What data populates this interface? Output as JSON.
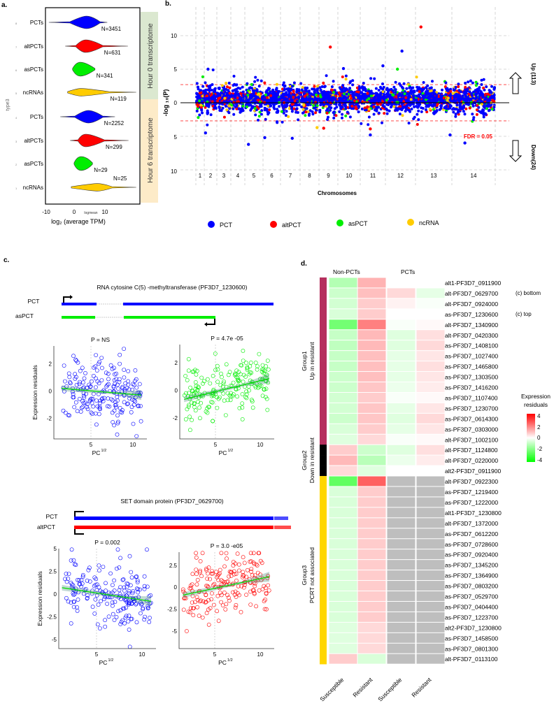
{
  "panel_labels": {
    "a": "a.",
    "b": "b.",
    "c": "c.",
    "d": "d."
  },
  "colors": {
    "PCT": "#0000ff",
    "altPCT": "#ff0000",
    "asPCT": "#00ee00",
    "ncRNA": "#ffcc00",
    "hour0_strip": "#dbe8d0",
    "hour6_strip": "#fdebc8",
    "group1": "#b5305e",
    "group2": "#000000",
    "group3": "#ffd600",
    "na": "#bebebe"
  },
  "panel_a": {
    "ylabel": "type3",
    "xlabel": "log₂ (average TPM)",
    "x_axis_name": "logmean",
    "x_ticks": [
      "-10",
      "0",
      "10"
    ],
    "strip_hour0": "Hour 0  transcriptome",
    "strip_hour6": "Hour 6  transcriptome",
    "chart_data": {
      "type": "violin",
      "xlim": [
        -12,
        22
      ],
      "groups": [
        {
          "label": "PCTs",
          "prefix": "8",
          "type": "PCT",
          "n_label": "N=3451",
          "min": -10.5,
          "q1": -3.6,
          "mode": 1.7,
          "q3": 6.1,
          "max": 8.5,
          "width": 1.0
        },
        {
          "label": "altPCTs",
          "prefix": "7",
          "type": "altPCT",
          "n_label": "N=631",
          "min": -5.2,
          "q1": -1.7,
          "mode": 1.5,
          "q3": 7.0,
          "max": 15.2,
          "width": 1.0
        },
        {
          "label": "asPCTs",
          "prefix": "6",
          "type": "asPCT",
          "n_label": "N=341",
          "min": -2.8,
          "q1": -2.8,
          "mode": -0.3,
          "q3": 4.5,
          "max": 4.5,
          "width": 1.1
        },
        {
          "label": "ncRNAs",
          "prefix": "5",
          "type": "ncRNA",
          "n_label": "N=119",
          "min": -4.4,
          "q1": -4.4,
          "mode": 0.0,
          "q3": 9.0,
          "max": 17.9,
          "width": 0.6
        },
        {
          "label": "PCTs",
          "prefix": "4",
          "type": "PCT",
          "n_label": "N=2252",
          "min": -6.8,
          "q1": -2.0,
          "mode": 2.3,
          "q3": 7.0,
          "max": 11.0,
          "width": 1.0
        },
        {
          "label": "altPCTs",
          "prefix": "3",
          "type": "altPCT",
          "n_label": "N=299",
          "min": -3.6,
          "q1": -1.0,
          "mode": 1.5,
          "q3": 7.5,
          "max": 15.4,
          "width": 1.0
        },
        {
          "label": "asPCTs",
          "prefix": "2",
          "type": "asPCT",
          "n_label": "N=29",
          "min": -2.3,
          "q1": -2.3,
          "mode": 0.0,
          "q3": 3.7,
          "max": 3.7,
          "width": 1.1
        },
        {
          "label": "ncRNAs",
          "prefix": "1",
          "type": "ncRNA",
          "n_label": "N=25",
          "min": -3.2,
          "q1": -3.2,
          "mode": 5.2,
          "q3": 10.0,
          "max": 17.9,
          "width": 0.6
        }
      ]
    }
  },
  "panel_b": {
    "ylabel": "-log ₁₀(P)",
    "xlabel": "Chromosomes",
    "y_ticks": [
      "10",
      "5",
      "0",
      "5",
      "10"
    ],
    "fdr_label": "FDR = 0.05",
    "up_label": "Up (113)",
    "down_label": "Down(24)",
    "legend": [
      "PCT",
      "altPCT",
      "asPCT",
      "ncRNA"
    ],
    "chart_data": {
      "type": "scatter",
      "subtype": "mirrored manhattan",
      "chromosomes": [
        "1",
        "2",
        "3",
        "4",
        "5",
        "6",
        "7",
        "8",
        "9",
        "10",
        "11",
        "12",
        "13",
        "14"
      ],
      "ylim": [
        -10,
        12
      ],
      "fdr_threshold_log10p": 2.7,
      "up_count": 113,
      "down_count": 24,
      "notable_points": [
        {
          "chr": 13,
          "pos": 0.15,
          "value": 11.3,
          "type": "altPCT"
        },
        {
          "chr": 9,
          "pos": 0.6,
          "value": 8.3,
          "type": "altPCT"
        },
        {
          "chr": 12,
          "pos": 0.55,
          "value": 7.7,
          "type": "PCT"
        },
        {
          "chr": 10,
          "pos": 0.25,
          "value": 5.1,
          "type": "PCT"
        },
        {
          "chr": 11,
          "pos": 0.9,
          "value": 5.5,
          "type": "PCT"
        },
        {
          "chr": 12,
          "pos": 0.4,
          "value": 5.0,
          "type": "asPCT"
        },
        {
          "chr": 2,
          "pos": 0.3,
          "value": 5.0,
          "type": "PCT"
        },
        {
          "chr": 5,
          "pos": 0.2,
          "value": -6.2,
          "type": "PCT"
        },
        {
          "chr": 14,
          "pos": 0.3,
          "value": -6.0,
          "type": "PCT"
        },
        {
          "chr": 7,
          "pos": 0.6,
          "value": -5.3,
          "type": "PCT"
        },
        {
          "chr": 6,
          "pos": 0.1,
          "value": -5.2,
          "type": "PCT"
        },
        {
          "chr": 11,
          "pos": 0.4,
          "value": -4.8,
          "type": "PCT"
        },
        {
          "chr": 13,
          "pos": 0.95,
          "value": -4.8,
          "type": "PCT"
        },
        {
          "chr": 2,
          "pos": 0.1,
          "value": -4.5,
          "type": "PCT"
        },
        {
          "chr": 11,
          "pos": 0.4,
          "value": -3.9,
          "type": "altPCT"
        },
        {
          "chr": 9,
          "pos": 0.25,
          "value": -3.8,
          "type": "altPCT"
        },
        {
          "chr": 8,
          "pos": 0.9,
          "value": -3.7,
          "type": "ncRNA"
        }
      ]
    }
  },
  "panel_c": {
    "top": {
      "gene_title": "RNA cytosine C(5) -methyltransferase (PF3D7_1230600)",
      "track1": "PCT",
      "track2": "asPCT",
      "left": {
        "p_label": "P = NS",
        "type": "PCT",
        "ylim": [
          -3.5,
          3.3
        ],
        "y_ticks": [
          "2",
          "0",
          "-2"
        ],
        "y_tick_values": [
          2,
          0,
          -2
        ],
        "trend": [
          [
            1.5,
            0.2
          ],
          [
            11,
            -0.3
          ]
        ]
      },
      "right": {
        "p_label": "P = 4.7e -05",
        "type": "asPCT",
        "ylim": [
          -3.5,
          3.3
        ],
        "y_ticks": [
          "2",
          "0",
          "-2"
        ],
        "y_tick_values": [
          2,
          0,
          -2
        ],
        "trend": [
          [
            1.5,
            -0.65
          ],
          [
            11,
            0.85
          ]
        ]
      }
    },
    "bottom": {
      "gene_title": "SET domain protein (PF3D7_0629700)",
      "track1": "PCT",
      "track2": "altPCT",
      "left": {
        "p_label": "P = 0.002",
        "type": "PCT",
        "ylim": [
          -6,
          5
        ],
        "y_ticks": [
          "5",
          "2.5",
          "0",
          "-2.5",
          "-5"
        ],
        "y_tick_values": [
          5,
          2.5,
          0,
          -2.5,
          -5
        ],
        "trend": [
          [
            1.2,
            0.7
          ],
          [
            11,
            -0.8
          ]
        ]
      },
      "right": {
        "p_label": "P = 3.0 -e05",
        "type": "altPCT",
        "ylim": [
          -7,
          4
        ],
        "y_ticks": [
          "2.5",
          "0",
          "-2.5",
          "-5"
        ],
        "y_tick_values": [
          2.5,
          0,
          -2.5,
          -5
        ],
        "trend": [
          [
            1.5,
            -0.9
          ],
          [
            11,
            1.2
          ]
        ]
      }
    },
    "ylabel": "Expression residuals",
    "xlabel": "PC",
    "xlabel_sup": "1/2",
    "x_ticks": [
      "5",
      "10"
    ]
  },
  "panel_d": {
    "col_groups": [
      "Non-PCTs",
      "PCTs"
    ],
    "columns": [
      "Susceptible",
      "Resistant",
      "Susceptible",
      "Resistant"
    ],
    "legend_title": [
      "Expression",
      "residuals"
    ],
    "legend_ticks": [
      "4",
      "2",
      "0",
      "-2",
      "-4"
    ],
    "groups": [
      {
        "name": "Group1",
        "desc": "Up in resistant"
      },
      {
        "name": "Group2",
        "desc": "Down in resistant"
      },
      {
        "name": "Group3",
        "desc": "PCRT not associated"
      }
    ],
    "chart_data": {
      "type": "heatmap",
      "scale": [
        -4,
        4
      ],
      "rows": [
        {
          "label": "alt1-PF3D7_0911900",
          "group": 0,
          "values": [
            -1.2,
            1.2,
            0,
            0
          ]
        },
        {
          "label": "alt-PF3D7_0629700",
          "group": 0,
          "note": "(c) bottom",
          "values": [
            -0.8,
            1.0,
            0.6,
            -0.4
          ]
        },
        {
          "label": "alt-PF3D7_0924000",
          "group": 0,
          "values": [
            -0.7,
            0.8,
            0.2,
            -0.1
          ]
        },
        {
          "label": "as-PF3D7_1230600",
          "group": 0,
          "note": "(c) top",
          "values": [
            -0.6,
            0.8,
            0,
            0
          ]
        },
        {
          "label": "alt-PF3D7_1340900",
          "group": 0,
          "values": [
            -2.2,
            2.0,
            -0.1,
            0.1
          ]
        },
        {
          "label": "alt-PF3D7_0420300",
          "group": 0,
          "values": [
            -0.9,
            1.1,
            -0.5,
            0.5
          ]
        },
        {
          "label": "as-PF3D7_1408100",
          "group": 0,
          "values": [
            -1.0,
            1.1,
            -0.5,
            0.6
          ]
        },
        {
          "label": "as-PF3D7_1027400",
          "group": 0,
          "values": [
            -0.9,
            1.0,
            -0.4,
            0.4
          ]
        },
        {
          "label": "as-PF3D7_1465800",
          "group": 0,
          "values": [
            -0.9,
            1.0,
            -0.4,
            0.5
          ]
        },
        {
          "label": "as-PF3D7_1303500",
          "group": 0,
          "values": [
            -0.8,
            1.0,
            -0.4,
            0.4
          ]
        },
        {
          "label": "as-PF3D7_1416200",
          "group": 0,
          "values": [
            -0.8,
            0.9,
            -0.3,
            0.3
          ]
        },
        {
          "label": "as-PF3D7_1107400",
          "group": 0,
          "values": [
            -0.7,
            0.8,
            -0.1,
            0.1
          ]
        },
        {
          "label": "as-PF3D7_1230700",
          "group": 0,
          "values": [
            -0.7,
            0.9,
            -0.4,
            0.4
          ]
        },
        {
          "label": "as-PF3D7_0614300",
          "group": 0,
          "values": [
            -0.8,
            0.9,
            -0.5,
            0.6
          ]
        },
        {
          "label": "as-PF3D7_0303000",
          "group": 0,
          "values": [
            -0.6,
            0.8,
            -0.4,
            0.4
          ]
        },
        {
          "label": "alt-PF3D7_1002100",
          "group": 0,
          "values": [
            -0.5,
            0.6,
            -0.1,
            0.1
          ]
        },
        {
          "label": "alt-PF3D7_1124800",
          "group": 1,
          "values": [
            0.8,
            -0.8,
            -0.5,
            0.5
          ]
        },
        {
          "label": "alt-PF3D7_0220000",
          "group": 1,
          "values": [
            1.1,
            -1.1,
            -0.3,
            0.3
          ]
        },
        {
          "label": "alt2-PF3D7_0911900",
          "group": 1,
          "values": [
            0.6,
            -0.5,
            0,
            0
          ]
        },
        {
          "label": "alt-PF3D7_0922300",
          "group": 2,
          "values": [
            -2.5,
            2.5,
            null,
            null
          ]
        },
        {
          "label": "as-PF3D7_1219400",
          "group": 2,
          "values": [
            -0.6,
            0.8,
            null,
            null
          ]
        },
        {
          "label": "as-PF3D7_1222000",
          "group": 2,
          "values": [
            -0.6,
            0.8,
            null,
            null
          ]
        },
        {
          "label": "alt1-PF3D7_1230800",
          "group": 2,
          "values": [
            -0.6,
            0.8,
            null,
            null
          ]
        },
        {
          "label": "alt-PF3D7_1372000",
          "group": 2,
          "values": [
            -0.6,
            0.8,
            null,
            null
          ]
        },
        {
          "label": "as-PF3D7_0612200",
          "group": 2,
          "values": [
            -0.6,
            0.8,
            null,
            null
          ]
        },
        {
          "label": "as-PF3D7_0728600",
          "group": 2,
          "values": [
            -0.6,
            0.8,
            null,
            null
          ]
        },
        {
          "label": "as-PF3D7_0920400",
          "group": 2,
          "values": [
            -0.6,
            0.8,
            null,
            null
          ]
        },
        {
          "label": "as-PF3D7_1345200",
          "group": 2,
          "values": [
            -0.6,
            0.8,
            null,
            null
          ]
        },
        {
          "label": "as-PF3D7_1364900",
          "group": 2,
          "values": [
            -0.6,
            0.8,
            null,
            null
          ]
        },
        {
          "label": "as-PF3D7_0803200",
          "group": 2,
          "values": [
            -0.6,
            0.8,
            null,
            null
          ]
        },
        {
          "label": "as-PF3D7_0529700",
          "group": 2,
          "values": [
            -0.6,
            0.8,
            null,
            null
          ]
        },
        {
          "label": "as-PF3D7_0404400",
          "group": 2,
          "values": [
            -0.6,
            0.8,
            null,
            null
          ]
        },
        {
          "label": "as-PF3D7_1223700",
          "group": 2,
          "values": [
            -0.6,
            0.8,
            null,
            null
          ]
        },
        {
          "label": "alt2-PF3D7_1230800",
          "group": 2,
          "values": [
            -0.5,
            0.6,
            null,
            null
          ]
        },
        {
          "label": "as-PF3D7_1458500",
          "group": 2,
          "values": [
            -0.5,
            0.6,
            null,
            null
          ]
        },
        {
          "label": "as-PF3D7_0801300",
          "group": 2,
          "values": [
            -0.5,
            0.6,
            null,
            null
          ]
        },
        {
          "label": "alt-PF3D7_0113100",
          "group": 2,
          "values": [
            0.8,
            -0.6,
            null,
            null
          ]
        }
      ]
    }
  }
}
